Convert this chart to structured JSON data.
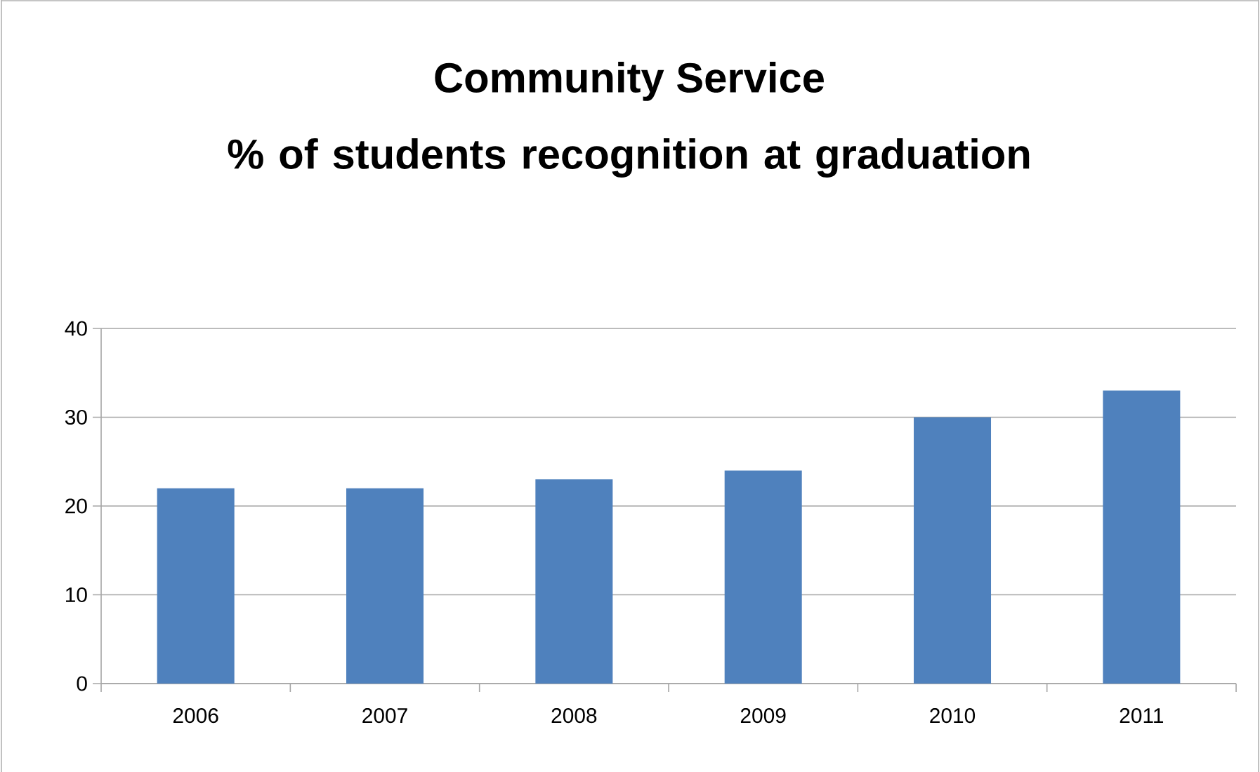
{
  "chart_data": {
    "type": "bar",
    "title": "Community Service",
    "subtitle": "% of students recognition at graduation",
    "categories": [
      "2006",
      "2007",
      "2008",
      "2009",
      "2010",
      "2011"
    ],
    "values": [
      22,
      22,
      23,
      24,
      30,
      33
    ],
    "color": "#4f81bd",
    "ylim": [
      0,
      40
    ],
    "yticks": [
      0,
      10,
      20,
      30,
      40
    ],
    "grid": "y"
  }
}
